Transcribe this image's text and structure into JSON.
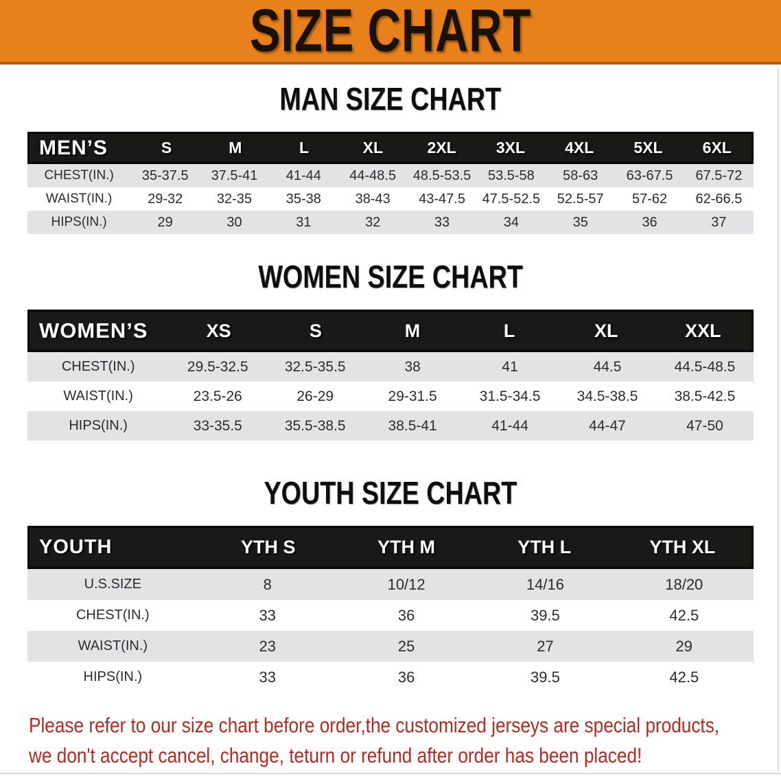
{
  "banner": {
    "title": "SIZE CHART"
  },
  "sections": [
    {
      "id": "men",
      "heading": "MAN SIZE CHART",
      "table": {
        "header_label": "MEN’S",
        "columns": [
          "S",
          "M",
          "L",
          "XL",
          "2XL",
          "3XL",
          "4XL",
          "5XL",
          "6XL"
        ],
        "rows": [
          {
            "label": "CHEST(IN.)",
            "values": [
              "35-37.5",
              "37.5-41",
              "41-44",
              "44-48.5",
              "48.5-53.5",
              "53.5-58",
              "58-63",
              "63-67.5",
              "67.5-72"
            ]
          },
          {
            "label": "WAIST(IN.)",
            "values": [
              "29-32",
              "32-35",
              "35-38",
              "38-43",
              "43-47.5",
              "47.5-52.5",
              "52.5-57",
              "57-62",
              "62-66.5"
            ]
          },
          {
            "label": "HIPS(IN.)",
            "values": [
              "29",
              "30",
              "31",
              "32",
              "33",
              "34",
              "35",
              "36",
              "37"
            ]
          }
        ]
      }
    },
    {
      "id": "women",
      "heading": "WOMEN SIZE CHART",
      "table": {
        "header_label": "WOMEN’S",
        "columns": [
          "XS",
          "S",
          "M",
          "L",
          "XL",
          "XXL"
        ],
        "rows": [
          {
            "label": "CHEST(IN.)",
            "values": [
              "29.5-32.5",
              "32.5-35.5",
              "38",
              "41",
              "44.5",
              "44.5-48.5"
            ]
          },
          {
            "label": "WAIST(IN.)",
            "values": [
              "23.5-26",
              "26-29",
              "29-31.5",
              "31.5-34.5",
              "34.5-38.5",
              "38.5-42.5"
            ]
          },
          {
            "label": "HIPS(IN.)",
            "values": [
              "33-35.5",
              "35.5-38.5",
              "38.5-41",
              "41-44",
              "44-47",
              "47-50"
            ]
          }
        ]
      }
    },
    {
      "id": "youth",
      "heading": "YOUTH SIZE CHART",
      "table": {
        "header_label": "YOUTH",
        "columns": [
          "YTH S",
          "YTH M",
          "YTH L",
          "YTH XL"
        ],
        "rows": [
          {
            "label": "U.S.SIZE",
            "values": [
              "8",
              "10/12",
              "14/16",
              "18/20"
            ]
          },
          {
            "label": "CHEST(IN.)",
            "values": [
              "33",
              "36",
              "39.5",
              "42.5"
            ]
          },
          {
            "label": "WAIST(IN.)",
            "values": [
              "23",
              "25",
              "27",
              "29"
            ]
          },
          {
            "label": "HIPS(IN.)",
            "values": [
              "33",
              "36",
              "39.5",
              "42.5"
            ]
          }
        ]
      }
    }
  ],
  "footer": {
    "line1": "Please refer to our size chart before order,the customized jerseys are special products,",
    "line2": "we don't accept cancel, change, teturn or refund after order has been placed!"
  },
  "colors": {
    "banner_bg": "#e8811c",
    "banner_border": "#b05f12",
    "header_bar_bg": "#191917",
    "header_bar_text": "#ffffff",
    "row_stripe": "#e3e3e5",
    "heading_text": "#0e0e0e",
    "footer_text": "#b12c24"
  }
}
